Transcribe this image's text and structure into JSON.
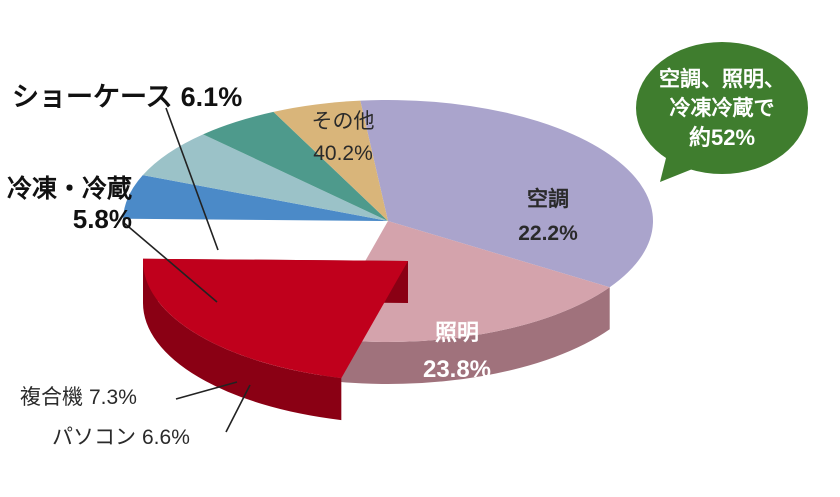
{
  "chart_data": {
    "type": "pie",
    "style": "3d-exploded",
    "slices": [
      {
        "key": "other",
        "label": "その他",
        "value_text": "40.2%",
        "value": 40.2,
        "color": "#aaa4cc",
        "side": "#7d7899",
        "exploded": false
      },
      {
        "key": "aircon",
        "label": "空調",
        "value_text": "22.2%",
        "value": 22.2,
        "color": "#d4a3ac",
        "side": "#a0727c",
        "exploded": false
      },
      {
        "key": "lighting",
        "label": "照明",
        "value_text": "23.8%",
        "value": 23.8,
        "color": "#c0001c",
        "side": "#8a0014",
        "exploded": true
      },
      {
        "key": "pc",
        "label": "パソコン",
        "value_text": "6.6%",
        "value": 6.6,
        "color": "#4b8ac8",
        "side": "#3468a0",
        "exploded": false
      },
      {
        "key": "copier",
        "label": "複合機",
        "value_text": "7.3%",
        "value": 7.3,
        "color": "#9bc2c8",
        "side": "#6e979c",
        "exploded": false
      },
      {
        "key": "freezer",
        "label": "冷凍・冷蔵",
        "value_text": "5.8%",
        "value": 5.8,
        "color": "#4e9a8c",
        "side": "#377a6c",
        "exploded": false
      },
      {
        "key": "showcase",
        "label": "ショーケース",
        "value_text": "6.1%",
        "value": 6.1,
        "color": "#d9b57a",
        "side": "#b3915c",
        "exploded": false
      }
    ],
    "callout": {
      "lines": [
        "空調、照明、",
        "冷凍冷蔵で",
        "約52%"
      ],
      "color": "#3f7d2e"
    }
  }
}
